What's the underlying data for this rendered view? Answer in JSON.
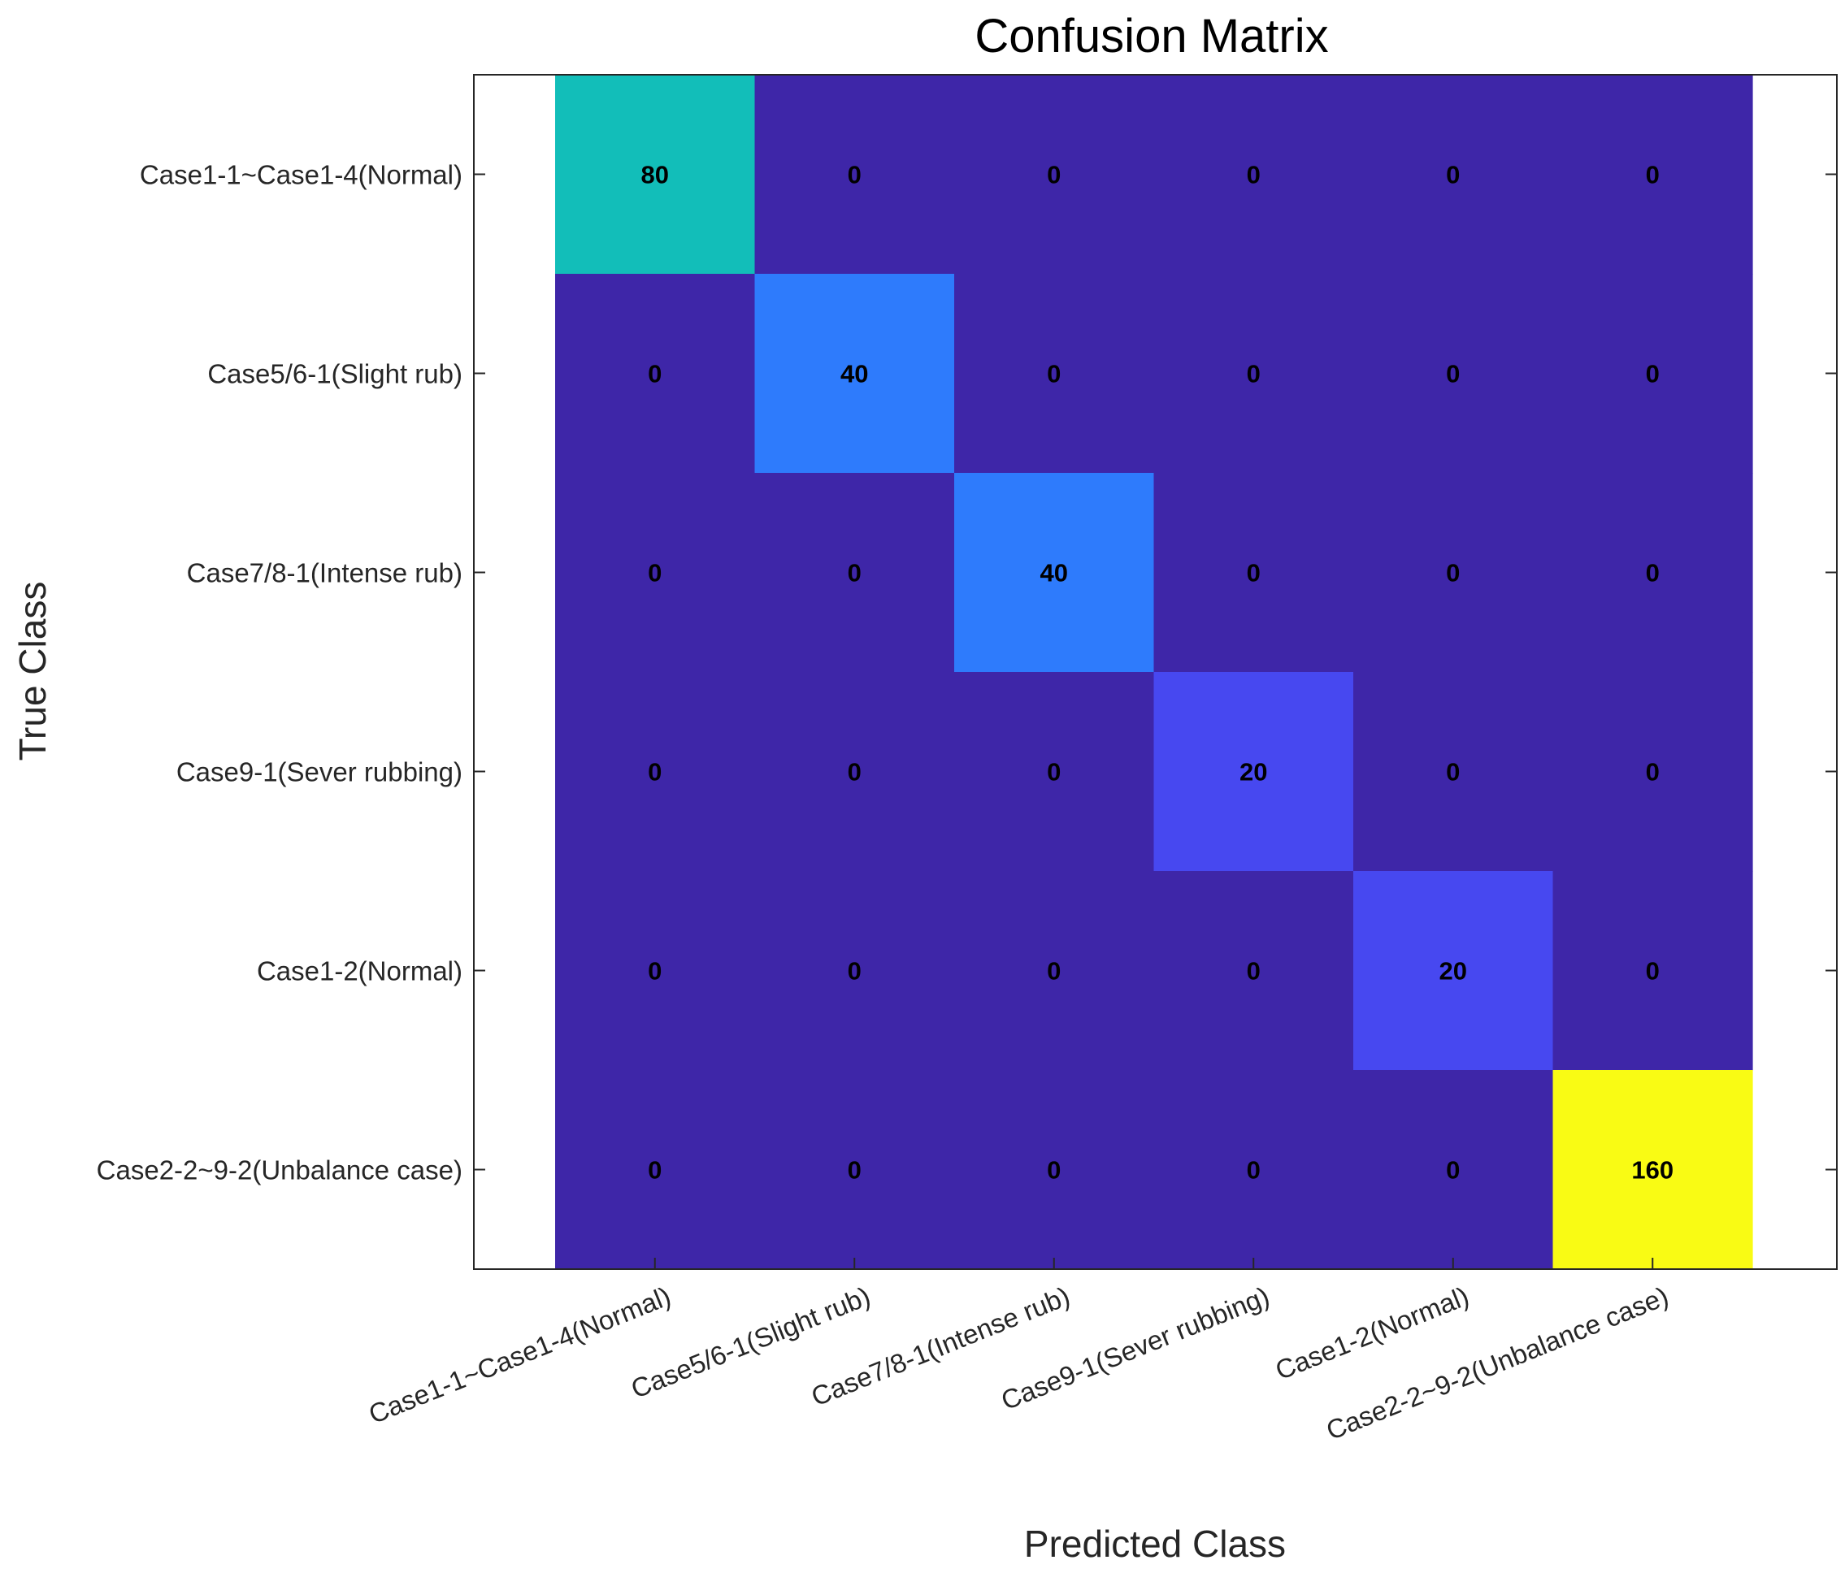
{
  "chart_data": {
    "type": "heatmap",
    "title": "Confusion Matrix",
    "xlabel": "Predicted Class",
    "ylabel": "True Class",
    "categories": [
      "Case1-1~Case1-4(Normal)",
      "Case5/6-1(Slight rub)",
      "Case7/8-1(Intense rub)",
      "Case9-1(Sever rubbing)",
      "Case1-2(Normal)",
      "Case2-2~9-2(Unbalance case)"
    ],
    "matrix": [
      [
        80,
        0,
        0,
        0,
        0,
        0
      ],
      [
        0,
        40,
        0,
        0,
        0,
        0
      ],
      [
        0,
        0,
        40,
        0,
        0,
        0
      ],
      [
        0,
        0,
        0,
        20,
        0,
        0
      ],
      [
        0,
        0,
        0,
        0,
        20,
        0
      ],
      [
        0,
        0,
        0,
        0,
        0,
        160
      ]
    ],
    "colormap": "parula",
    "color_range": [
      0,
      160
    ],
    "colors": {
      "low": "#3e26a8",
      "value_20": "#4748f0",
      "value_40": "#2e7bfc",
      "value_80": "#12beb9",
      "high": "#f9fb14"
    }
  }
}
